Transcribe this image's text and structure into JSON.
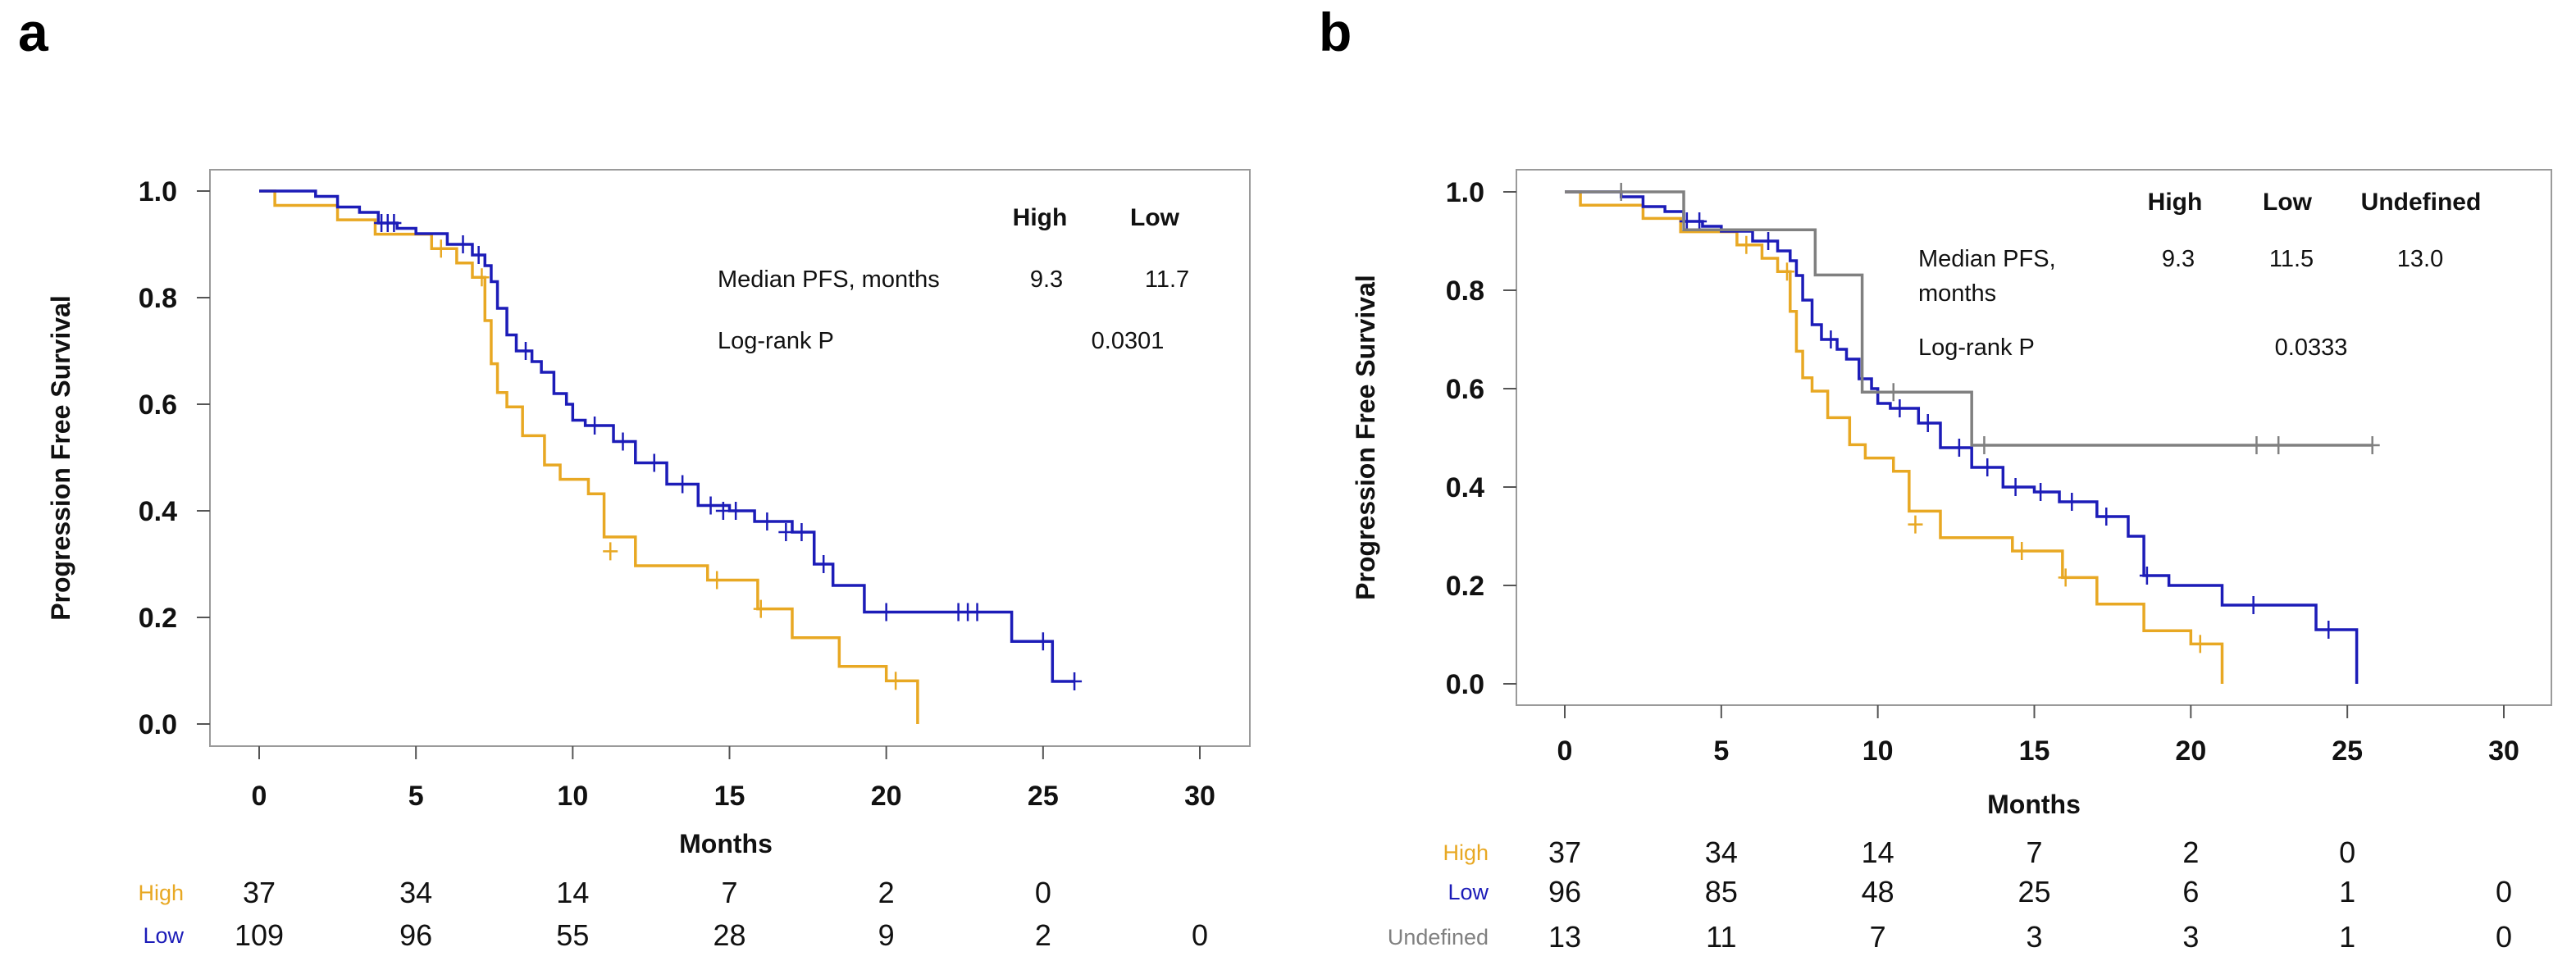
{
  "colors": {
    "High": "#e8a823",
    "Low": "#1c1cb8",
    "Undefined": "#808080"
  },
  "chart_data": [
    {
      "panel": "a",
      "type": "line",
      "subtype": "kaplan-meier",
      "xlabel": "Months",
      "ylabel": "Progression Free Survival",
      "xlim": [
        0,
        30
      ],
      "ylim": [
        0,
        1
      ],
      "xticks": [
        0,
        5,
        10,
        15,
        20,
        25,
        30
      ],
      "yticks": [
        "0.0",
        "0.2",
        "0.4",
        "0.6",
        "0.8",
        "1.0"
      ],
      "legend_table": {
        "headers": [
          "High",
          "Low"
        ],
        "rows": [
          {
            "label": "Median PFS, months",
            "values": [
              "9.3",
              "11.7"
            ]
          },
          {
            "label": "Log-rank P",
            "values": [
              "0.0301"
            ]
          }
        ]
      },
      "series": [
        {
          "name": "High",
          "x": [
            0,
            0.5,
            1.0,
            2.5,
            3.7,
            4.4,
            5.5,
            6.3,
            6.8,
            7.2,
            7.4,
            7.6,
            7.9,
            8.4,
            9.1,
            9.6,
            10.5,
            11.0,
            12.0,
            14.3,
            15.0,
            15.9,
            17.0,
            18.5,
            19.5,
            20.0,
            21.0
          ],
          "y": [
            1.0,
            0.973,
            0.973,
            0.946,
            0.919,
            0.919,
            0.892,
            0.865,
            0.838,
            0.757,
            0.676,
            0.622,
            0.595,
            0.541,
            0.486,
            0.459,
            0.432,
            0.351,
            0.297,
            0.27,
            0.27,
            0.216,
            0.162,
            0.108,
            0.108,
            0.081,
            0.0
          ],
          "censored": [
            [
              5.8,
              0.892
            ],
            [
              7.1,
              0.838
            ],
            [
              11.2,
              0.324
            ],
            [
              14.6,
              0.27
            ],
            [
              16.0,
              0.216
            ],
            [
              20.3,
              0.081
            ]
          ]
        },
        {
          "name": "Low",
          "x": [
            0,
            1.8,
            2.5,
            3.2,
            3.8,
            4.4,
            5.0,
            6.0,
            6.8,
            7.2,
            7.4,
            7.6,
            7.9,
            8.2,
            8.7,
            9.0,
            9.4,
            9.8,
            10.0,
            10.4,
            11.3,
            12.0,
            13.0,
            14.0,
            15.0,
            15.8,
            17.0,
            17.7,
            18.3,
            19.3,
            21.0,
            24.0,
            25.3,
            26.0
          ],
          "y": [
            1.0,
            0.99,
            0.97,
            0.96,
            0.94,
            0.93,
            0.92,
            0.9,
            0.88,
            0.86,
            0.83,
            0.78,
            0.73,
            0.7,
            0.68,
            0.66,
            0.62,
            0.6,
            0.57,
            0.56,
            0.53,
            0.49,
            0.45,
            0.41,
            0.4,
            0.38,
            0.36,
            0.3,
            0.26,
            0.21,
            0.21,
            0.155,
            0.08,
            0.08
          ],
          "censored": [
            [
              3.9,
              0.94
            ],
            [
              4.1,
              0.94
            ],
            [
              4.3,
              0.94
            ],
            [
              6.5,
              0.9
            ],
            [
              7.0,
              0.88
            ],
            [
              8.5,
              0.7
            ],
            [
              10.7,
              0.56
            ],
            [
              11.6,
              0.53
            ],
            [
              12.6,
              0.49
            ],
            [
              13.5,
              0.45
            ],
            [
              14.4,
              0.41
            ],
            [
              14.8,
              0.4
            ],
            [
              15.2,
              0.4
            ],
            [
              16.2,
              0.38
            ],
            [
              16.8,
              0.36
            ],
            [
              17.3,
              0.36
            ],
            [
              18.0,
              0.3
            ],
            [
              20.0,
              0.21
            ],
            [
              22.3,
              0.21
            ],
            [
              22.6,
              0.21
            ],
            [
              22.9,
              0.21
            ],
            [
              25.0,
              0.155
            ],
            [
              26.0,
              0.08
            ]
          ]
        }
      ],
      "risk_table": {
        "times": [
          0,
          5,
          10,
          15,
          20,
          25,
          30
        ],
        "rows": [
          {
            "label": "High",
            "values": [
              "37",
              "34",
              "14",
              "7",
              "2",
              "0",
              ""
            ]
          },
          {
            "label": "Low",
            "values": [
              "109",
              "96",
              "55",
              "28",
              "9",
              "2",
              "0"
            ]
          }
        ]
      }
    },
    {
      "panel": "b",
      "type": "line",
      "subtype": "kaplan-meier",
      "xlabel": "Months",
      "ylabel": "Progression Free Survival",
      "xlim": [
        0,
        30
      ],
      "ylim": [
        0,
        1
      ],
      "xticks": [
        0,
        5,
        10,
        15,
        20,
        25,
        30
      ],
      "yticks": [
        "0.0",
        "0.2",
        "0.4",
        "0.6",
        "0.8",
        "1.0"
      ],
      "legend_table": {
        "headers": [
          "High",
          "Low",
          "Undefined"
        ],
        "rows": [
          {
            "label": "Median PFS,",
            "label2": "months",
            "values": [
              "9.3",
              "11.5",
              "13.0"
            ]
          },
          {
            "label": "Log-rank P",
            "values": [
              "0.0333"
            ]
          }
        ]
      },
      "series": [
        {
          "name": "High",
          "x": [
            0,
            0.5,
            1.0,
            2.5,
            3.7,
            4.4,
            5.5,
            6.3,
            6.8,
            7.2,
            7.4,
            7.6,
            7.9,
            8.4,
            9.1,
            9.6,
            10.5,
            11.0,
            12.0,
            14.3,
            15.0,
            15.9,
            17.0,
            18.5,
            19.5,
            20.0,
            21.0
          ],
          "y": [
            1.0,
            0.973,
            0.973,
            0.946,
            0.919,
            0.919,
            0.892,
            0.865,
            0.838,
            0.757,
            0.676,
            0.622,
            0.595,
            0.541,
            0.486,
            0.459,
            0.432,
            0.351,
            0.297,
            0.27,
            0.27,
            0.216,
            0.162,
            0.108,
            0.108,
            0.081,
            0.0
          ],
          "censored": [
            [
              5.8,
              0.892
            ],
            [
              7.1,
              0.838
            ],
            [
              11.2,
              0.324
            ],
            [
              14.6,
              0.27
            ],
            [
              16.0,
              0.216
            ],
            [
              20.3,
              0.081
            ]
          ]
        },
        {
          "name": "Low",
          "x": [
            0,
            1.8,
            2.5,
            3.2,
            3.8,
            4.4,
            5.0,
            6.0,
            6.8,
            7.2,
            7.4,
            7.6,
            7.9,
            8.2,
            8.7,
            9.0,
            9.4,
            9.8,
            10.0,
            10.4,
            11.3,
            12.0,
            13.0,
            14.0,
            15.0,
            15.8,
            17.0,
            18.0,
            18.5,
            19.3,
            21.0,
            24.0,
            25.3
          ],
          "y": [
            1.0,
            0.99,
            0.97,
            0.96,
            0.94,
            0.93,
            0.92,
            0.9,
            0.88,
            0.86,
            0.83,
            0.78,
            0.73,
            0.7,
            0.68,
            0.66,
            0.62,
            0.6,
            0.57,
            0.56,
            0.53,
            0.48,
            0.44,
            0.4,
            0.39,
            0.37,
            0.34,
            0.3,
            0.22,
            0.2,
            0.16,
            0.11,
            0.0
          ],
          "censored": [
            [
              3.9,
              0.94
            ],
            [
              4.3,
              0.94
            ],
            [
              6.5,
              0.9
            ],
            [
              8.5,
              0.7
            ],
            [
              10.7,
              0.56
            ],
            [
              11.6,
              0.53
            ],
            [
              12.6,
              0.48
            ],
            [
              13.5,
              0.44
            ],
            [
              14.4,
              0.4
            ],
            [
              15.2,
              0.39
            ],
            [
              16.2,
              0.37
            ],
            [
              17.3,
              0.34
            ],
            [
              18.6,
              0.22
            ],
            [
              22.0,
              0.16
            ],
            [
              24.4,
              0.11
            ]
          ]
        },
        {
          "name": "Undefined",
          "x": [
            0,
            2.0,
            3.8,
            7.4,
            8.0,
            9.5,
            13.0,
            25.8
          ],
          "y": [
            1.0,
            1.0,
            0.923,
            0.923,
            0.831,
            0.593,
            0.485,
            0.485
          ],
          "censored": [
            [
              1.8,
              1.0
            ],
            [
              10.5,
              0.593
            ],
            [
              13.4,
              0.485
            ],
            [
              22.1,
              0.485
            ],
            [
              22.8,
              0.485
            ],
            [
              25.8,
              0.485
            ]
          ]
        }
      ],
      "risk_table": {
        "times": [
          0,
          5,
          10,
          15,
          20,
          25,
          30
        ],
        "rows": [
          {
            "label": "High",
            "values": [
              "37",
              "34",
              "14",
              "7",
              "2",
              "0",
              ""
            ]
          },
          {
            "label": "Low",
            "values": [
              "96",
              "85",
              "48",
              "25",
              "6",
              "1",
              "0"
            ]
          },
          {
            "label": "Undefined",
            "values": [
              "13",
              "11",
              "7",
              "3",
              "3",
              "1",
              "0"
            ]
          }
        ]
      }
    }
  ]
}
